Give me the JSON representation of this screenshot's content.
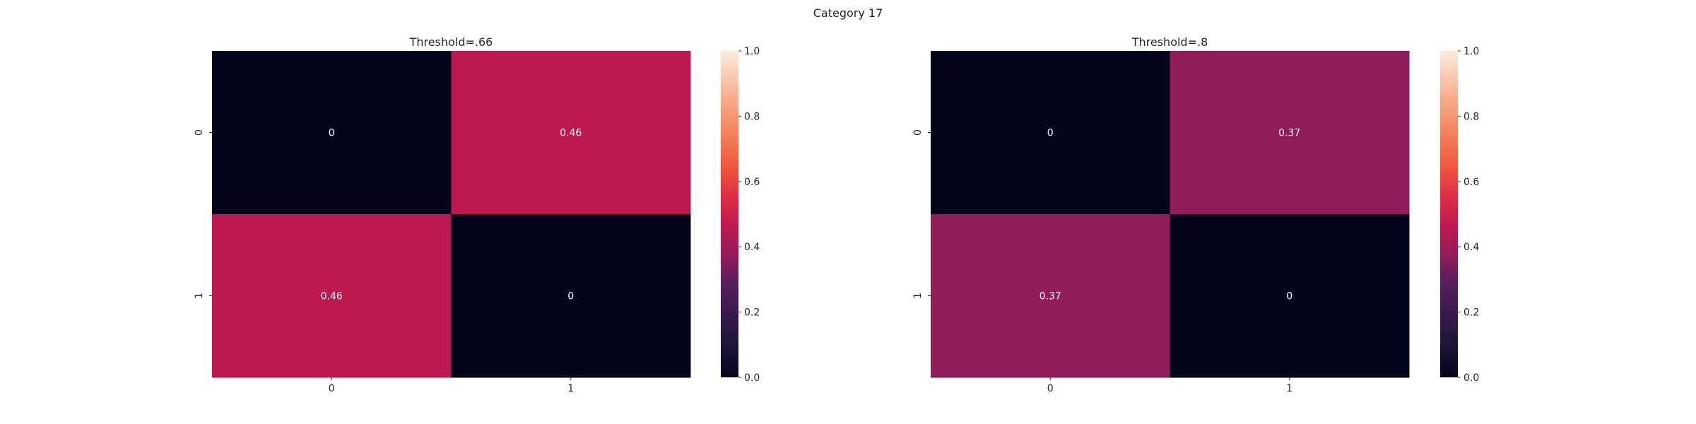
{
  "figure": {
    "suptitle": "Category 17"
  },
  "chart_data": [
    {
      "type": "heatmap",
      "title": "Threshold=.66",
      "xlabel": "",
      "ylabel": "",
      "x_categories": [
        "0",
        "1"
      ],
      "y_categories": [
        "0",
        "1"
      ],
      "values": [
        [
          0,
          0.46
        ],
        [
          0.46,
          0
        ]
      ],
      "annotations": [
        [
          "0",
          "0.46"
        ],
        [
          "0.46",
          "0"
        ]
      ],
      "colorbar": {
        "range": [
          0.0,
          1.0
        ],
        "ticks": [
          "0.0",
          "0.2",
          "0.4",
          "0.6",
          "0.8",
          "1.0"
        ],
        "colormap": "rocket"
      },
      "grid": false
    },
    {
      "type": "heatmap",
      "title": "Threshold=.8",
      "xlabel": "",
      "ylabel": "",
      "x_categories": [
        "0",
        "1"
      ],
      "y_categories": [
        "0",
        "1"
      ],
      "values": [
        [
          0,
          0.37
        ],
        [
          0.37,
          0
        ]
      ],
      "annotations": [
        [
          "0",
          "0.37"
        ],
        [
          "0.37",
          "0"
        ]
      ],
      "colorbar": {
        "range": [
          0.0,
          1.0
        ],
        "ticks": [
          "0.0",
          "0.2",
          "0.4",
          "0.6",
          "0.8",
          "1.0"
        ],
        "colormap": "rocket"
      },
      "grid": false
    }
  ],
  "colors": {
    "rocket_stops": [
      [
        0.0,
        "#03051a"
      ],
      [
        0.1,
        "#1d1537"
      ],
      [
        0.2,
        "#3a1a4e"
      ],
      [
        0.3,
        "#5c1e5f"
      ],
      [
        0.37,
        "#901c5a"
      ],
      [
        0.46,
        "#bc1952"
      ],
      [
        0.55,
        "#dd2c45"
      ],
      [
        0.65,
        "#ef5a3d"
      ],
      [
        0.75,
        "#f4835c"
      ],
      [
        0.85,
        "#f6ab8a"
      ],
      [
        1.0,
        "#faebdd"
      ]
    ],
    "text_dark_bg": "#ffffff",
    "text_light_bg": "#262626",
    "axis_text": "#262626"
  }
}
